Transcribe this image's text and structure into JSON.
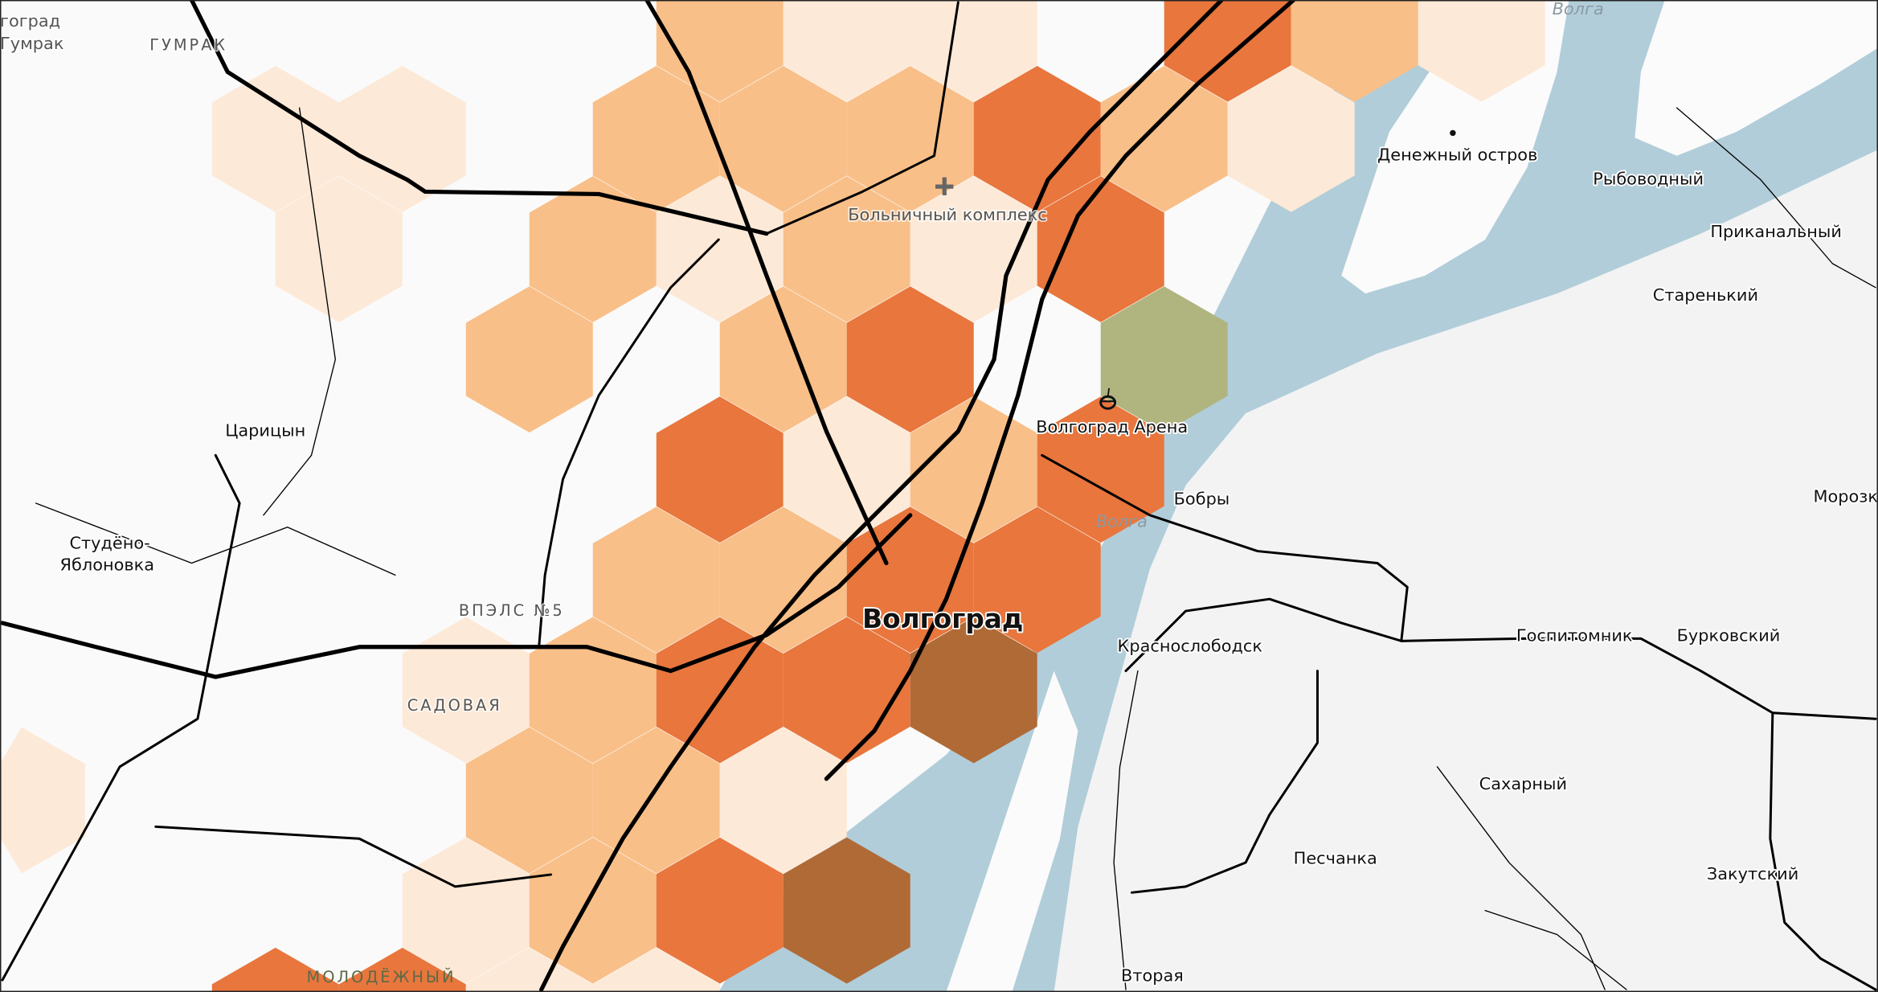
{
  "map": {
    "colors": {
      "land": "#fafafa",
      "east_bank": "#f3f3f3",
      "water": "#b1cdd9",
      "hex_pale": "#fde9d7",
      "hex_light": "#f9bf88",
      "hex_dark": "#e8763d",
      "hex_brown": "#b06a36",
      "hex_olive": "#b0b47f"
    },
    "density_hexes": [
      {
        "row": -3,
        "cells": [
          "none",
          "none",
          "none",
          "none",
          "none",
          "light",
          "pale",
          "pale",
          "none",
          "dark",
          "light",
          "pale"
        ]
      },
      {
        "row": -2,
        "cells": [
          "none",
          "none",
          "pale",
          "pale",
          "none",
          "light",
          "light",
          "light",
          "dark",
          "light",
          "pale"
        ]
      },
      {
        "row": -1,
        "cells": [
          "none",
          "none",
          "pale",
          "none",
          "light",
          "pale",
          "light",
          "pale",
          "dark",
          "none"
        ]
      },
      {
        "row": 0,
        "cells": [
          "none",
          "none",
          "none",
          "none",
          "light",
          "none",
          "light",
          "dark",
          "none",
          "olive"
        ]
      },
      {
        "row": 1,
        "cells": [
          "none",
          "none",
          "none",
          "none",
          "none",
          "dark",
          "pale",
          "light",
          "dark"
        ]
      },
      {
        "row": 2,
        "cells": [
          "none",
          "none",
          "none",
          "none",
          "none",
          "light",
          "light",
          "dark",
          "dark"
        ]
      },
      {
        "row": 3,
        "cells": [
          "none",
          "none",
          "none",
          "pale",
          "light",
          "dark",
          "dark",
          "brown"
        ]
      },
      {
        "row": 4,
        "cells": [
          "pale",
          "none",
          "none",
          "none",
          "light",
          "light",
          "pale",
          "none"
        ]
      },
      {
        "row": 5,
        "cells": [
          "none",
          "none",
          "none",
          "pale",
          "light",
          "dark",
          "brown"
        ]
      },
      {
        "row": 6,
        "cells": [
          "none",
          "none",
          "dark",
          "dark",
          "pale",
          "pale"
        ]
      }
    ],
    "labels": {
      "gumrak_station_1": "гоград",
      "gumrak_station_2": "Гумрак",
      "gumrak_district": "ГУМРАК",
      "hospital": "Больничный комплекс",
      "volga_north": "Волга",
      "volga_center": "Волга",
      "denezhny": "Денежный остров",
      "rybovodny": "Рыбоводный",
      "prikanalny": "Приканальный",
      "starenky": "Старенький",
      "morozki": "Морозк",
      "tsaritsyn": "Царицын",
      "studeno_1": "Студёно-",
      "studeno_2": "Яблоновка",
      "vpels": "ВПЭЛС №5",
      "sadovaya": "САДОВАЯ",
      "molodezhny": "МОЛОДЁЖНЫЙ",
      "volgograd": "Волгоград",
      "arena": "Волгоград Арена",
      "bobry": "Бобры",
      "krasnoslobodsk": "Краснослободск",
      "gospitomnik": "Госпитомник",
      "burkovsky": "Бурковский",
      "sakharny": "Сахарный",
      "peschanka": "Песчанка",
      "zakutsky": "Закутский",
      "vtoraya": "Вторая"
    },
    "icons": {
      "hospital": "plus-icon",
      "arena": "stadium-icon",
      "island": "dot-icon"
    }
  }
}
